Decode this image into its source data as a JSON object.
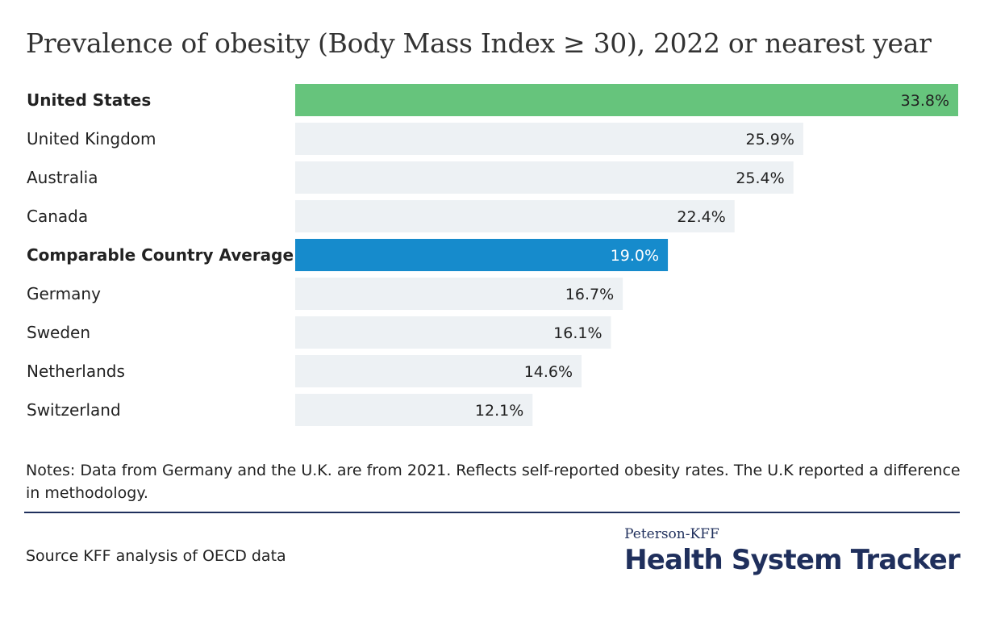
{
  "chart_data": {
    "type": "bar",
    "orientation": "horizontal",
    "title": "Prevalence of obesity (Body Mass Index ≥ 30), 2022 or nearest year",
    "categories": [
      "United States",
      "United Kingdom",
      "Australia",
      "Canada",
      "Comparable Country Average",
      "Germany",
      "Sweden",
      "Netherlands",
      "Switzerland"
    ],
    "values": [
      33.8,
      25.9,
      25.4,
      22.4,
      19.0,
      16.7,
      16.1,
      14.6,
      12.1
    ],
    "value_labels": [
      "33.8%",
      "25.9%",
      "25.4%",
      "22.4%",
      "19.0%",
      "16.7%",
      "16.1%",
      "14.6%",
      "12.1%"
    ],
    "bold_categories": [
      "United States",
      "Comparable Country Average"
    ],
    "highlight_colors": {
      "United States": "#66c47c",
      "Comparable Country Average": "#168bcc"
    },
    "default_bar_color": "#edf1f4",
    "xlim": [
      0,
      33.8
    ],
    "grid": false,
    "legend": "none"
  },
  "notes": "Notes: Data from Germany and the U.K. are from 2021. Reflects self-reported obesity rates. The U.K reported a difference in methodology.",
  "source": "Source KFF analysis of OECD data",
  "logo": {
    "top": "Peterson-KFF",
    "main": "Health System Tracker"
  },
  "colors": {
    "brand_navy": "#1f2f5c"
  }
}
